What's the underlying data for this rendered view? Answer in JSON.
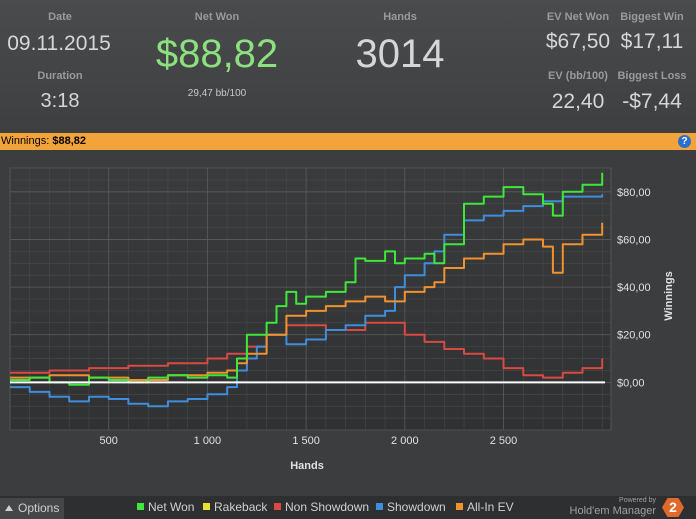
{
  "stats": {
    "date_label": "Date",
    "date_value": "09.11.2015",
    "duration_label": "Duration",
    "duration_value": "3:18",
    "netwon_label": "Net Won",
    "netwon_value": "$88,82",
    "bb_value": "29,47 bb/100",
    "hands_label": "Hands",
    "hands_value": "3014",
    "ev_netwon_label": "EV Net Won",
    "ev_netwon_value": "$67,50",
    "biggest_win_label": "Biggest Win",
    "biggest_win_value": "$17,11",
    "ev_bb_label": "EV (bb/100)",
    "ev_bb_value": "22,40",
    "biggest_loss_label": "Biggest Loss",
    "biggest_loss_value": "-$7,44"
  },
  "banner": {
    "label": "Winnings:",
    "value": "$88,82",
    "help_icon": "?"
  },
  "chart_data": {
    "type": "line",
    "xlabel": "Hands",
    "ylabel": "Winnings",
    "xlim": [
      0,
      3014
    ],
    "ylim": [
      -20,
      90
    ],
    "x_ticks": [
      500,
      1000,
      1500,
      2000,
      2500
    ],
    "x_tick_labels": [
      "500",
      "1 000",
      "1 500",
      "2 000",
      "2 500"
    ],
    "y_ticks": [
      0,
      20,
      40,
      60,
      80
    ],
    "y_tick_labels": [
      "$0,00",
      "$20,00",
      "$40,00",
      "$60,00",
      "$80,00"
    ],
    "grid": true,
    "legend_position": "bottom",
    "series": [
      {
        "name": "Net Won",
        "color": "#3ee83a",
        "x": [
          0,
          100,
          200,
          300,
          400,
          500,
          600,
          700,
          800,
          900,
          1000,
          1100,
          1150,
          1200,
          1300,
          1350,
          1400,
          1450,
          1500,
          1600,
          1700,
          1750,
          1800,
          1900,
          1950,
          2000,
          2100,
          2150,
          2200,
          2300,
          2400,
          2500,
          2600,
          2700,
          2750,
          2800,
          2900,
          3000
        ],
        "y": [
          1,
          2,
          0,
          -1,
          2,
          1,
          0,
          2,
          3,
          2,
          3,
          2,
          10,
          20,
          25,
          32,
          38,
          33,
          36,
          38,
          42,
          52,
          51,
          55,
          50,
          52,
          54,
          50,
          58,
          75,
          78,
          82,
          79,
          75,
          70,
          80,
          83,
          88
        ]
      },
      {
        "name": "Rakeback",
        "color": "#e8e034",
        "x": [
          0,
          3014
        ],
        "y": [
          0,
          0
        ]
      },
      {
        "name": "Non Showdown",
        "color": "#d84a42",
        "x": [
          0,
          200,
          400,
          600,
          800,
          1000,
          1100,
          1200,
          1300,
          1400,
          1500,
          1600,
          1700,
          1800,
          1900,
          2000,
          2100,
          2200,
          2300,
          2400,
          2500,
          2600,
          2700,
          2800,
          2900,
          3000
        ],
        "y": [
          4,
          5,
          6,
          7,
          8,
          10,
          12,
          15,
          20,
          24,
          24,
          22,
          22,
          25,
          25,
          20,
          17,
          14,
          12,
          10,
          6,
          3,
          2,
          4,
          6,
          10
        ]
      },
      {
        "name": "Showdown",
        "color": "#3f8edb",
        "x": [
          0,
          100,
          200,
          300,
          400,
          500,
          600,
          700,
          800,
          900,
          1000,
          1100,
          1150,
          1200,
          1250,
          1300,
          1400,
          1500,
          1600,
          1700,
          1800,
          1900,
          1950,
          2000,
          2100,
          2150,
          2200,
          2300,
          2400,
          2500,
          2600,
          2700,
          2800,
          2900,
          3000
        ],
        "y": [
          -2,
          -4,
          -6,
          -8,
          -6,
          -7,
          -9,
          -10,
          -8,
          -7,
          -5,
          -2,
          5,
          10,
          15,
          20,
          16,
          18,
          22,
          24,
          28,
          30,
          40,
          45,
          50,
          55,
          62,
          68,
          70,
          72,
          74,
          76,
          78,
          78,
          79
        ]
      },
      {
        "name": "All-In EV",
        "color": "#f0922e",
        "x": [
          0,
          200,
          400,
          600,
          800,
          1000,
          1100,
          1150,
          1200,
          1300,
          1400,
          1500,
          1600,
          1700,
          1800,
          1900,
          2000,
          2100,
          2150,
          2200,
          2300,
          2400,
          2500,
          2600,
          2700,
          2750,
          2800,
          2900,
          3000
        ],
        "y": [
          2,
          3,
          2,
          1,
          3,
          4,
          5,
          8,
          12,
          20,
          28,
          30,
          32,
          34,
          36,
          34,
          38,
          40,
          42,
          48,
          52,
          54,
          58,
          60,
          57,
          46,
          58,
          62,
          67
        ]
      }
    ]
  },
  "footer": {
    "options_label": "Options",
    "options_icon": "triangle-up",
    "legend": [
      {
        "name": "Net Won",
        "color": "#3ee83a"
      },
      {
        "name": "Rakeback",
        "color": "#e8e034"
      },
      {
        "name": "Non Showdown",
        "color": "#d84a42"
      },
      {
        "name": "Showdown",
        "color": "#3f8edb"
      },
      {
        "name": "All-In EV",
        "color": "#f0922e"
      }
    ],
    "powered_by": "Powered by",
    "brand_name": "Hold'em Manager",
    "brand_logo": "2"
  }
}
